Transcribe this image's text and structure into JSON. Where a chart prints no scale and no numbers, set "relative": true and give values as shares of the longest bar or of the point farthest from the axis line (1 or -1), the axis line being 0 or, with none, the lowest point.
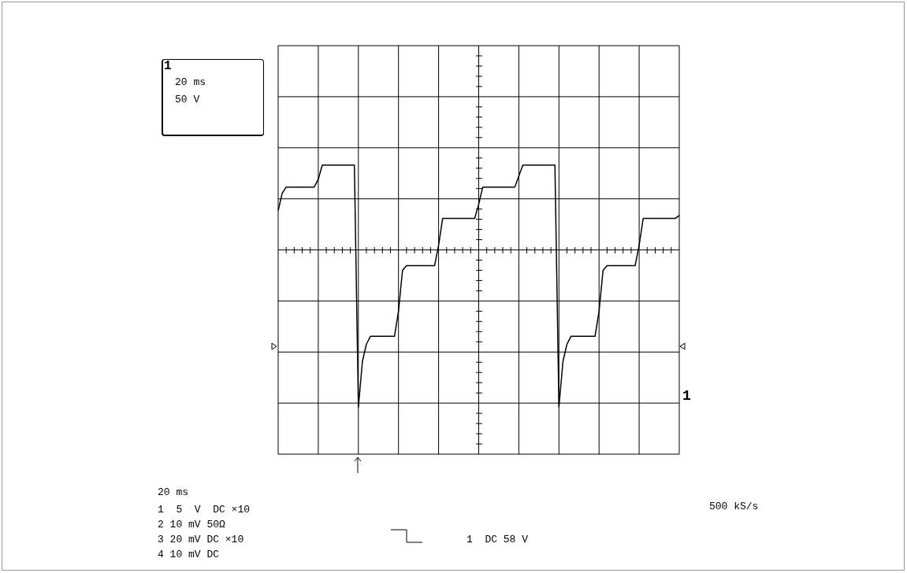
{
  "chart_data": {
    "type": "line",
    "relative": true,
    "grid": true,
    "categories": [
      null,
      null,
      null,
      null,
      null,
      null,
      null,
      null,
      null,
      null,
      null,
      null,
      null,
      null,
      null,
      null,
      null,
      null,
      null,
      null,
      null,
      null,
      null,
      null,
      null,
      null,
      null,
      null,
      null,
      null,
      null,
      null,
      null,
      null,
      null,
      null,
      null,
      null,
      null,
      null,
      null,
      null,
      null,
      null,
      null,
      null,
      null,
      null,
      null,
      null,
      null,
      null,
      null,
      null,
      null,
      null,
      null,
      null,
      null,
      null,
      null,
      null,
      null,
      null,
      null,
      null,
      null,
      null,
      null,
      null,
      null,
      null,
      null,
      null,
      null,
      null,
      null,
      null,
      null,
      null,
      null,
      null,
      null,
      null,
      null,
      null,
      null,
      null,
      null,
      null,
      null,
      null,
      null,
      null,
      null,
      null,
      null,
      null,
      null,
      null,
      null
    ],
    "series": [
      {
        "color": "#000000",
        "values": [
          0.25,
          0.36,
          0.4,
          0.4,
          0.4,
          0.4,
          0.4,
          0.4,
          0.4,
          0.4,
          0.45,
          0.54,
          0.54,
          0.54,
          0.54,
          0.54,
          0.54,
          0.54,
          0.54,
          0.54,
          -1,
          -0.71,
          -0.6,
          -0.55,
          -0.55,
          -0.55,
          -0.55,
          -0.55,
          -0.55,
          -0.55,
          -0.39,
          -0.13,
          -0.1,
          -0.1,
          -0.1,
          -0.1,
          -0.1,
          -0.1,
          -0.1,
          -0.1,
          0.03,
          0.2,
          0.2,
          0.2,
          0.2,
          0.2,
          0.2,
          0.2,
          0.2,
          0.2,
          0.29,
          0.4,
          0.4,
          0.4,
          0.4,
          0.4,
          0.4,
          0.4,
          0.4,
          0.4,
          0.47,
          0.54,
          0.54,
          0.54,
          0.54,
          0.54,
          0.54,
          0.54,
          0.54,
          0.54,
          -1,
          -0.71,
          -0.6,
          -0.55,
          -0.55,
          -0.55,
          -0.55,
          -0.55,
          -0.55,
          -0.55,
          -0.39,
          -0.13,
          -0.1,
          -0.1,
          -0.1,
          -0.1,
          -0.1,
          -0.1,
          -0.1,
          -0.1,
          0.03,
          0.2,
          0.2,
          0.2,
          0.2,
          0.2,
          0.2,
          0.2,
          0.2,
          0.2,
          0.22
        ]
      }
    ],
    "annotations": [
      "1",
      "20 ms",
      "50 V",
      "20 ms",
      "1  5  V  DC ×10",
      "2 10 mV 50Ω",
      "3 20 mV DC ×10",
      "4 10 mV DC",
      "1  DC 58 V",
      "500 kS/s",
      "1"
    ]
  }
}
